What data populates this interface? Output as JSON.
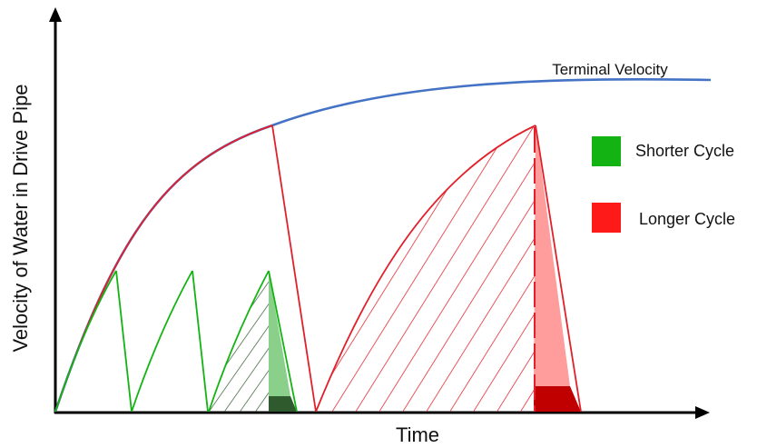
{
  "diagram": {
    "x_axis_label": "Time",
    "y_axis_label": "Velocity of Water in Drive Pipe",
    "curve_label": "Terminal Velocity",
    "legend": [
      {
        "label": "Shorter Cycle",
        "color": "#12b312"
      },
      {
        "label": "Longer Cycle",
        "color": "#ff1a1a"
      }
    ],
    "colors": {
      "terminal_curve": "#4472c4",
      "shorter_cycle": "#12b312",
      "shorter_hatch": "#2f5a2f",
      "shorter_fill_light": "#8ad08a",
      "shorter_fill_dark": "#2e5a2e",
      "longer_cycle": "#e0202a",
      "longer_fill_light": "#ff9c9c",
      "longer_fill_dark": "#c00000"
    }
  }
}
